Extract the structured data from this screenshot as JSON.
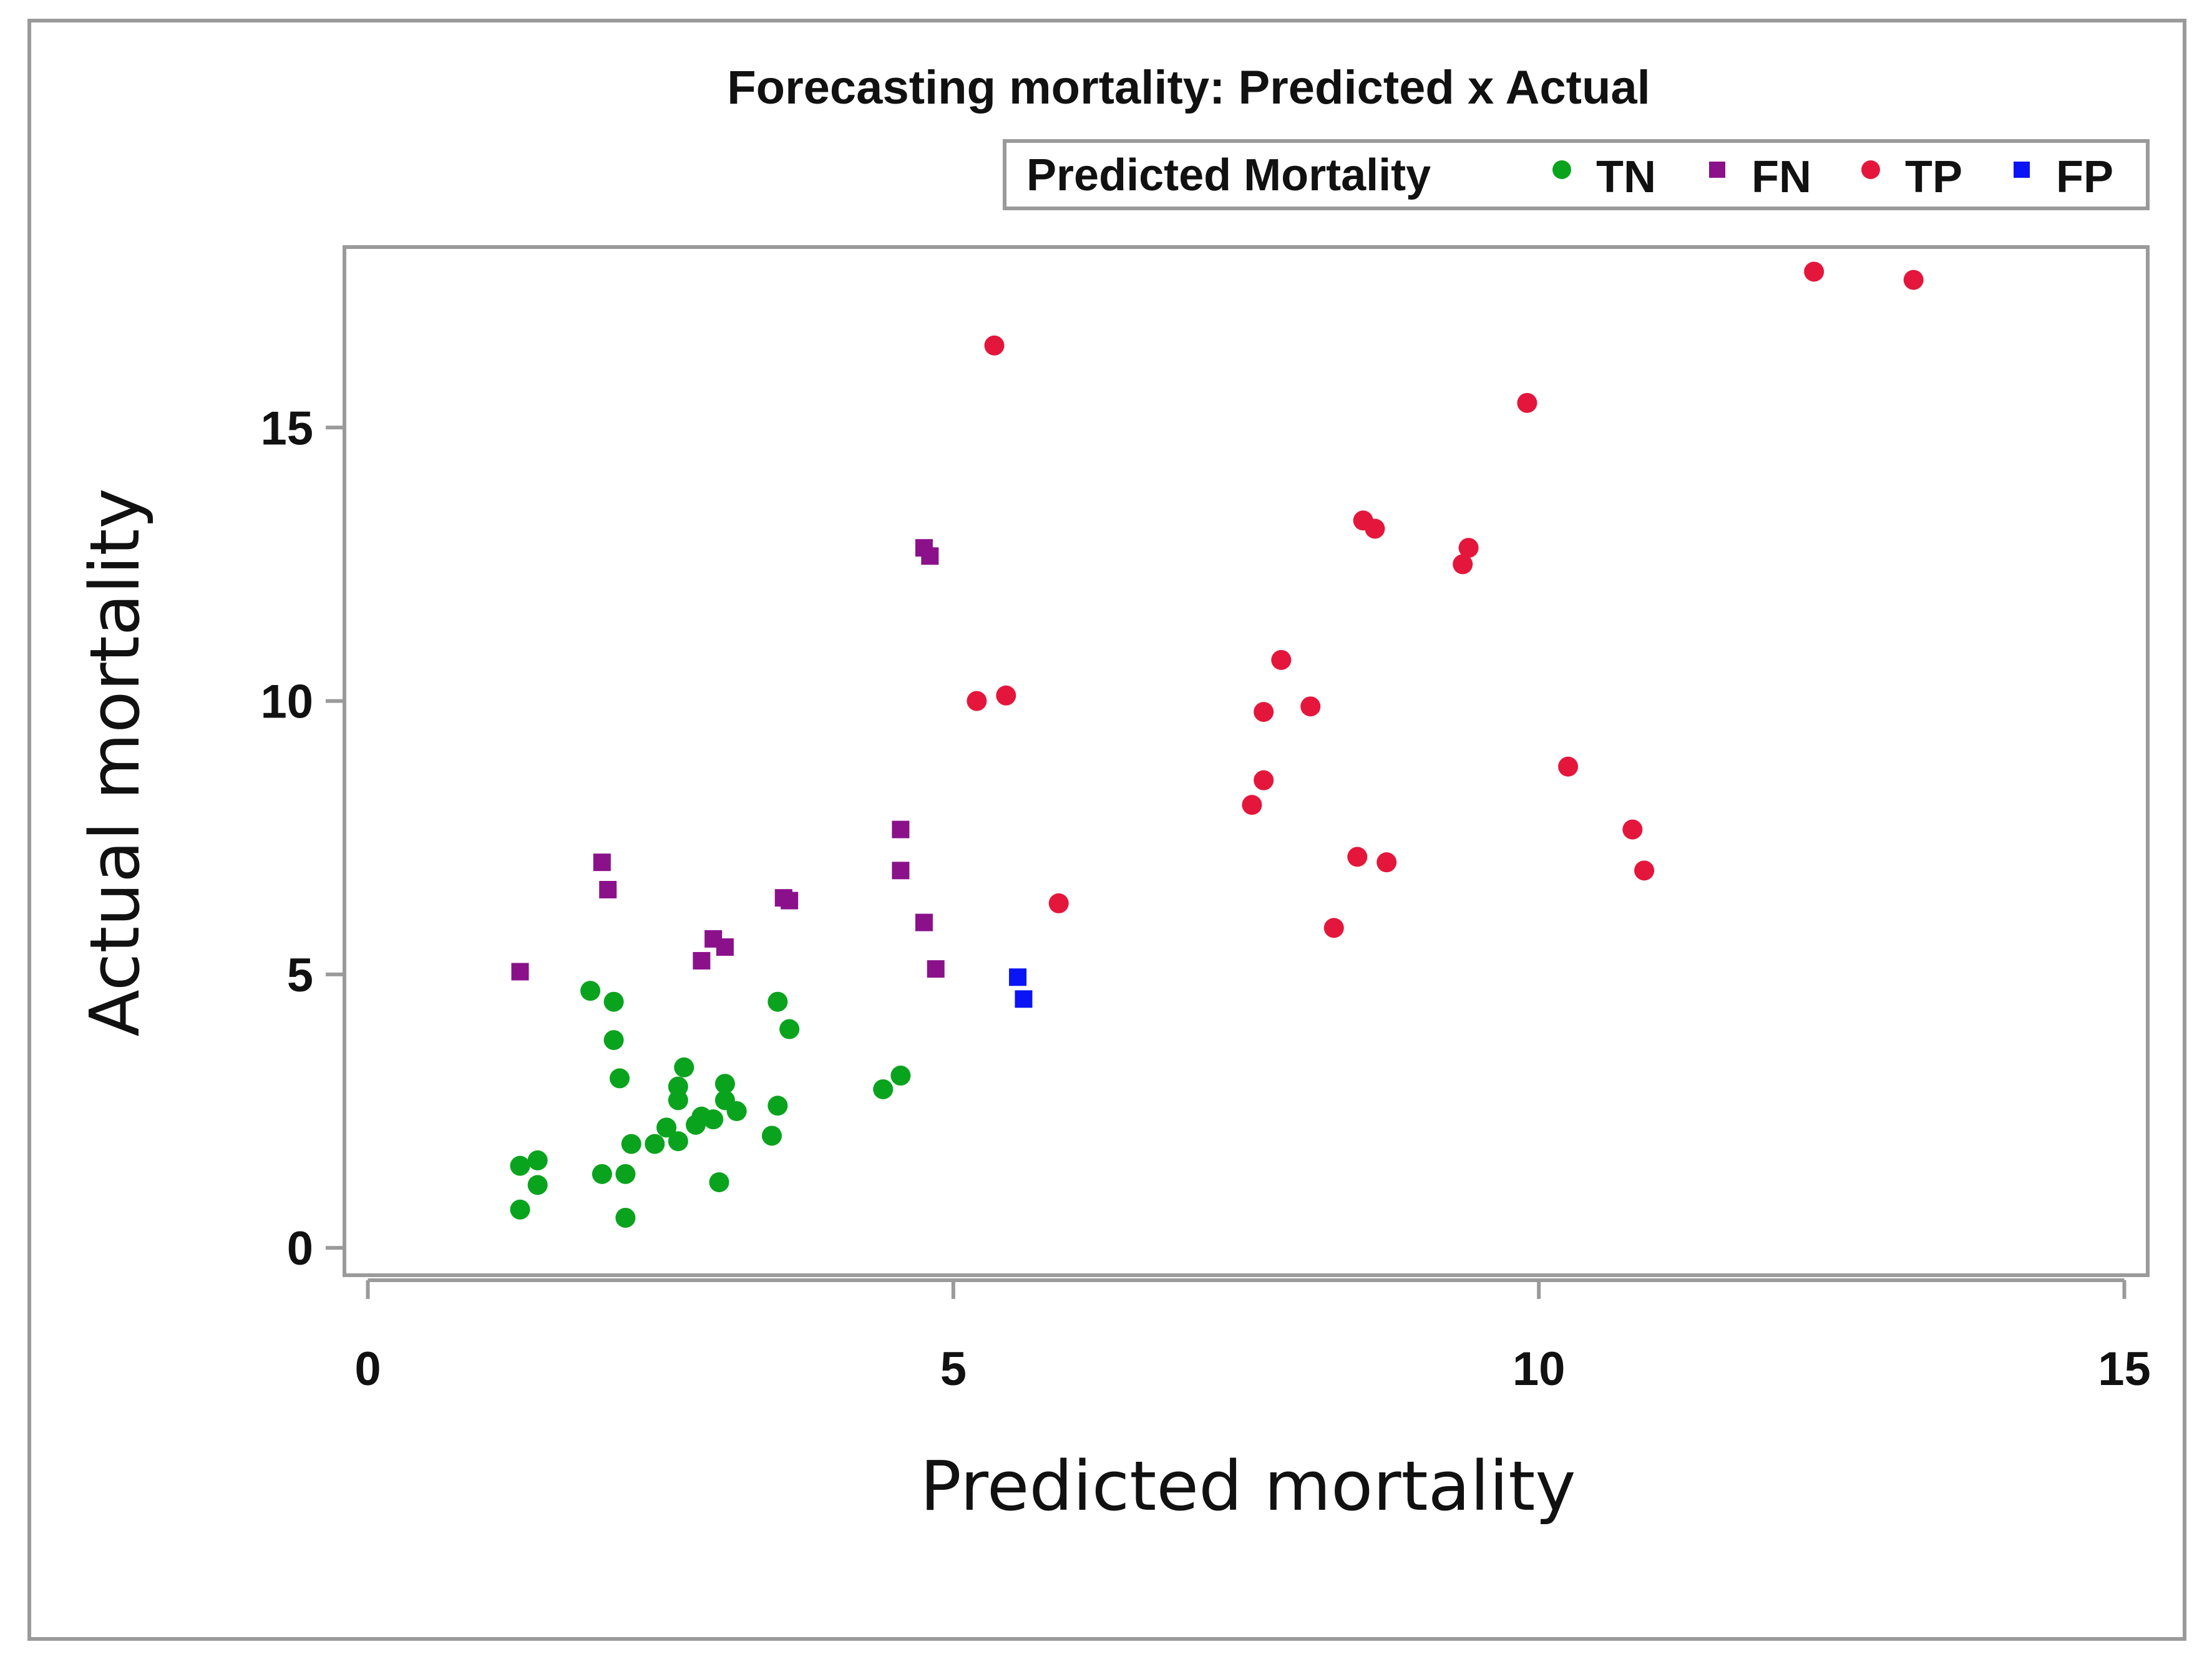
{
  "chart_data": {
    "type": "scatter",
    "title": "Forecasting mortality: Predicted x Actual",
    "xlabel": "Predicted mortality",
    "ylabel": "Actual mortality",
    "xlim": [
      -0.2,
      15.2
    ],
    "ylim": [
      -0.5,
      18.3
    ],
    "xticks": [
      0,
      5,
      10,
      15
    ],
    "yticks": [
      0,
      5,
      10,
      15
    ],
    "x_tick_labels": [
      "0",
      "5",
      "10",
      "15"
    ],
    "y_tick_labels": [
      "0",
      "5",
      "10",
      "15"
    ],
    "legend": {
      "title": "Predicted Mortality",
      "placement": "top-right, outside plot area",
      "entries": [
        "TN",
        "FN",
        "TP",
        "FP"
      ]
    },
    "series": [
      {
        "name": "TN",
        "marker": "circle",
        "color": "#0aa31e",
        "points": [
          [
            1.3,
            1.5
          ],
          [
            1.3,
            0.7
          ],
          [
            1.45,
            1.6
          ],
          [
            1.45,
            1.15
          ],
          [
            1.9,
            4.7
          ],
          [
            2.0,
            1.35
          ],
          [
            2.1,
            4.5
          ],
          [
            2.1,
            3.8
          ],
          [
            2.15,
            3.1
          ],
          [
            2.2,
            1.35
          ],
          [
            2.2,
            0.55
          ],
          [
            2.25,
            1.9
          ],
          [
            2.45,
            1.9
          ],
          [
            2.55,
            2.2
          ],
          [
            2.65,
            2.95
          ],
          [
            2.65,
            2.7
          ],
          [
            2.65,
            1.95
          ],
          [
            2.7,
            3.3
          ],
          [
            2.8,
            2.25
          ],
          [
            2.85,
            2.4
          ],
          [
            2.95,
            2.35
          ],
          [
            3.0,
            1.2
          ],
          [
            3.05,
            3.0
          ],
          [
            3.05,
            2.7
          ],
          [
            3.15,
            2.5
          ],
          [
            3.45,
            2.05
          ],
          [
            3.5,
            4.5
          ],
          [
            3.5,
            2.6
          ],
          [
            3.6,
            4.0
          ],
          [
            4.4,
            2.9
          ],
          [
            4.55,
            3.15
          ]
        ]
      },
      {
        "name": "FN",
        "marker": "square",
        "color": "#8b118b",
        "points": [
          [
            1.3,
            5.05
          ],
          [
            2.0,
            7.05
          ],
          [
            2.05,
            6.55
          ],
          [
            2.85,
            5.25
          ],
          [
            2.95,
            5.65
          ],
          [
            3.05,
            5.5
          ],
          [
            3.55,
            6.4
          ],
          [
            3.6,
            6.35
          ],
          [
            4.55,
            7.65
          ],
          [
            4.55,
            6.9
          ],
          [
            4.75,
            12.8
          ],
          [
            4.8,
            12.65
          ],
          [
            4.75,
            5.95
          ],
          [
            4.85,
            5.1
          ]
        ]
      },
      {
        "name": "TP",
        "marker": "circle",
        "color": "#e5163c",
        "points": [
          [
            5.2,
            10.0
          ],
          [
            5.35,
            16.5
          ],
          [
            5.45,
            10.1
          ],
          [
            5.9,
            6.3
          ],
          [
            7.55,
            8.1
          ],
          [
            7.65,
            9.8
          ],
          [
            7.65,
            8.55
          ],
          [
            7.8,
            10.75
          ],
          [
            8.05,
            9.9
          ],
          [
            8.25,
            5.85
          ],
          [
            8.45,
            7.15
          ],
          [
            8.5,
            13.3
          ],
          [
            8.6,
            13.15
          ],
          [
            8.7,
            7.05
          ],
          [
            9.35,
            12.5
          ],
          [
            9.4,
            12.8
          ],
          [
            9.9,
            15.45
          ],
          [
            10.25,
            8.8
          ],
          [
            10.8,
            7.65
          ],
          [
            10.9,
            6.9
          ],
          [
            12.35,
            17.85
          ],
          [
            13.2,
            17.7
          ]
        ]
      },
      {
        "name": "FP",
        "marker": "square",
        "color": "#0a14f5",
        "points": [
          [
            5.55,
            4.95
          ],
          [
            5.6,
            4.55
          ]
        ]
      }
    ]
  }
}
